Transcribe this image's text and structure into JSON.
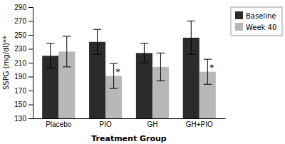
{
  "chart_data": {
    "type": "bar",
    "categories": [
      "Placebo",
      "PIO",
      "GH",
      "GH+PIO"
    ],
    "series": [
      {
        "name": "Baseline",
        "color": "#2b2b2b",
        "values": [
          220,
          240,
          224,
          246
        ],
        "errors": [
          18,
          18,
          14,
          24
        ]
      },
      {
        "name": "Week 40",
        "color": "#b8b8b8",
        "values": [
          226,
          191,
          204,
          197
        ],
        "errors": [
          22,
          18,
          20,
          18
        ]
      }
    ],
    "annotations": [
      {
        "text": "*",
        "category": "PIO",
        "series": "Week 40"
      },
      {
        "text": "*",
        "category": "GH+PIO",
        "series": "Week 40"
      }
    ],
    "xlabel": "Treatment Group",
    "ylabel": "SSPG (mg/dl)**",
    "ylim": [
      130,
      290
    ],
    "yticks": [
      130,
      150,
      170,
      190,
      210,
      230,
      250,
      270,
      290
    ],
    "grid": false,
    "legend": "right"
  }
}
